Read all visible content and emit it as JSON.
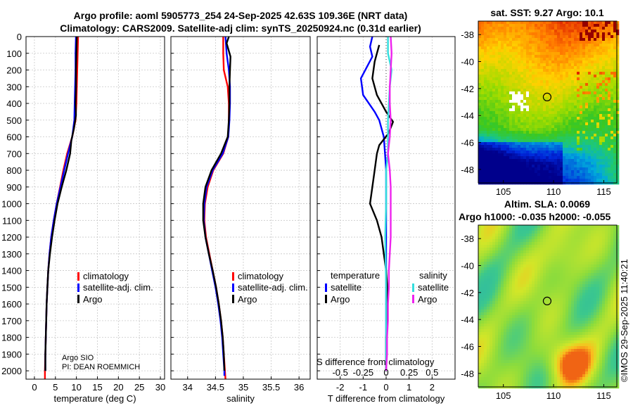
{
  "titles": {
    "line1": "Argo profile: aoml 5905773_254 24-Sep-2025 42.63S 109.36E (NRT data)",
    "line2": "Climatology: CARS2009. Satellite-adj clim: synTS_20250924.nc (0.31d earlier)"
  },
  "colors": {
    "climatology": "#ff0000",
    "satellite_adj": "#0000ff",
    "argo": "#000000",
    "sal_satellite": "#33dddd",
    "sal_argo": "#ee22ee"
  },
  "chart_data": [
    {
      "type": "line",
      "name": "temperature-profile",
      "xlabel": "temperature (deg C)",
      "xlim": [
        -2,
        31
      ],
      "ylim": [
        2050,
        0
      ],
      "xticks": [
        0,
        5,
        10,
        15,
        20,
        25,
        30
      ],
      "yticks": [
        0,
        100,
        200,
        300,
        400,
        500,
        600,
        700,
        800,
        900,
        1000,
        1100,
        1200,
        1300,
        1400,
        1500,
        1600,
        1700,
        1800,
        1900,
        2000
      ],
      "legend": [
        "climatology",
        "satellite-adj. clim.",
        "Argo"
      ],
      "annotations": [
        "Argo SIO",
        "PI: DEAN ROEMMICH"
      ],
      "series": [
        {
          "name": "climatology",
          "color": "#ff0000",
          "points": [
            [
              10.4,
              0
            ],
            [
              10.3,
              100
            ],
            [
              10.2,
              200
            ],
            [
              10.1,
              300
            ],
            [
              10.0,
              400
            ],
            [
              9.8,
              500
            ],
            [
              9.0,
              600
            ],
            [
              7.8,
              700
            ],
            [
              6.9,
              800
            ],
            [
              6.1,
              900
            ],
            [
              5.3,
              1000
            ],
            [
              4.6,
              1100
            ],
            [
              4.0,
              1200
            ],
            [
              3.6,
              1300
            ],
            [
              3.3,
              1400
            ],
            [
              3.1,
              1500
            ],
            [
              2.9,
              1600
            ],
            [
              2.8,
              1700
            ],
            [
              2.7,
              1800
            ],
            [
              2.6,
              1900
            ],
            [
              2.5,
              2000
            ],
            [
              2.5,
              2050
            ]
          ]
        },
        {
          "name": "satellite-adj. clim.",
          "color": "#0000ff",
          "points": [
            [
              9.9,
              0
            ],
            [
              9.8,
              100
            ],
            [
              9.8,
              200
            ],
            [
              9.7,
              300
            ],
            [
              9.6,
              400
            ],
            [
              9.5,
              500
            ],
            [
              9.0,
              600
            ],
            [
              8.0,
              700
            ],
            [
              7.1,
              800
            ],
            [
              6.2,
              900
            ],
            [
              5.3,
              1000
            ],
            [
              4.6,
              1100
            ],
            [
              4.0,
              1200
            ],
            [
              3.6,
              1300
            ],
            [
              3.3,
              1400
            ],
            [
              3.1,
              1500
            ],
            [
              2.9,
              1600
            ],
            [
              2.8,
              1700
            ],
            [
              2.7,
              1800
            ],
            [
              2.6,
              1900
            ],
            [
              2.6,
              2000
            ]
          ]
        },
        {
          "name": "Argo",
          "color": "#000000",
          "points": [
            [
              10.1,
              0
            ],
            [
              10.0,
              100
            ],
            [
              9.9,
              200
            ],
            [
              9.9,
              300
            ],
            [
              9.8,
              400
            ],
            [
              9.9,
              470
            ],
            [
              9.4,
              550
            ],
            [
              8.8,
              620
            ],
            [
              8.5,
              700
            ],
            [
              7.6,
              800
            ],
            [
              6.5,
              900
            ],
            [
              5.5,
              1000
            ],
            [
              4.8,
              1100
            ],
            [
              4.2,
              1200
            ],
            [
              3.7,
              1300
            ],
            [
              3.3,
              1400
            ],
            [
              3.1,
              1500
            ],
            [
              2.9,
              1600
            ],
            [
              2.8,
              1700
            ],
            [
              2.7,
              1800
            ],
            [
              2.6,
              1900
            ],
            [
              2.6,
              2000
            ]
          ]
        }
      ]
    },
    {
      "type": "line",
      "name": "salinity-profile",
      "xlabel": "salinity",
      "xlim": [
        33.7,
        36.2
      ],
      "ylim": [
        2050,
        0
      ],
      "xticks": [
        34,
        34.5,
        35,
        35.5,
        36
      ],
      "legend": [
        "climatology",
        "satellite-adj. clim.",
        "Argo"
      ],
      "series": [
        {
          "name": "climatology",
          "color": "#ff0000",
          "points": [
            [
              34.64,
              0
            ],
            [
              34.64,
              100
            ],
            [
              34.65,
              200
            ],
            [
              34.72,
              300
            ],
            [
              34.74,
              400
            ],
            [
              34.74,
              500
            ],
            [
              34.73,
              600
            ],
            [
              34.64,
              700
            ],
            [
              34.46,
              800
            ],
            [
              34.36,
              900
            ],
            [
              34.31,
              1000
            ],
            [
              34.3,
              1100
            ],
            [
              34.33,
              1200
            ],
            [
              34.39,
              1300
            ],
            [
              34.45,
              1400
            ],
            [
              34.51,
              1500
            ],
            [
              34.56,
              1600
            ],
            [
              34.6,
              1700
            ],
            [
              34.63,
              1800
            ],
            [
              34.65,
              1900
            ],
            [
              34.67,
              2000
            ],
            [
              34.68,
              2050
            ]
          ]
        },
        {
          "name": "satellite-adj. clim.",
          "color": "#0000ff",
          "points": [
            [
              34.68,
              0
            ],
            [
              34.7,
              100
            ],
            [
              34.74,
              200
            ],
            [
              34.76,
              300
            ],
            [
              34.76,
              400
            ],
            [
              34.75,
              500
            ],
            [
              34.73,
              600
            ],
            [
              34.63,
              700
            ],
            [
              34.45,
              800
            ],
            [
              34.34,
              900
            ],
            [
              34.3,
              1000
            ],
            [
              34.29,
              1100
            ],
            [
              34.32,
              1200
            ],
            [
              34.38,
              1300
            ],
            [
              34.44,
              1400
            ],
            [
              34.5,
              1500
            ],
            [
              34.55,
              1600
            ],
            [
              34.59,
              1700
            ],
            [
              34.62,
              1800
            ],
            [
              34.64,
              1900
            ],
            [
              34.66,
              2000
            ],
            [
              34.66,
              2030
            ]
          ]
        },
        {
          "name": "Argo",
          "color": "#000000",
          "points": [
            [
              34.74,
              0
            ],
            [
              34.7,
              40
            ],
            [
              34.77,
              120
            ],
            [
              34.76,
              200
            ],
            [
              34.75,
              300
            ],
            [
              34.75,
              400
            ],
            [
              34.74,
              500
            ],
            [
              34.72,
              600
            ],
            [
              34.6,
              700
            ],
            [
              34.43,
              800
            ],
            [
              34.32,
              900
            ],
            [
              34.28,
              1000
            ],
            [
              34.28,
              1100
            ],
            [
              34.32,
              1200
            ],
            [
              34.38,
              1300
            ],
            [
              34.45,
              1400
            ],
            [
              34.51,
              1500
            ],
            [
              34.56,
              1600
            ],
            [
              34.6,
              1700
            ],
            [
              34.63,
              1800
            ],
            [
              34.65,
              1900
            ],
            [
              34.66,
              2000
            ]
          ]
        }
      ]
    },
    {
      "type": "line",
      "name": "difference-profile",
      "xlabel": "T difference from climatology",
      "xlabel2": "S difference from climatology",
      "xlim": [
        -3,
        3
      ],
      "ylim": [
        2050,
        0
      ],
      "xticks": [
        -2,
        -1,
        0,
        1,
        2
      ],
      "s_ticks": [
        -0.5,
        -0.25,
        0,
        0.25,
        0.5
      ],
      "s_tick_labels": [
        "-0.5",
        "-0.25",
        "0",
        "0.25",
        "0.5"
      ],
      "legend_headers": [
        "temperature",
        "salinity"
      ],
      "legend_temperature": [
        "satellite",
        "Argo"
      ],
      "legend_salinity": [
        "satellite",
        "Argo"
      ],
      "series": [
        {
          "name": "T satellite",
          "color": "#0000ff",
          "points": [
            [
              -0.6,
              0
            ],
            [
              -0.7,
              60
            ],
            [
              -0.6,
              120
            ],
            [
              -1.1,
              250
            ],
            [
              -1.0,
              350
            ],
            [
              -0.5,
              450
            ],
            [
              -0.3,
              500
            ],
            [
              -0.1,
              600
            ],
            [
              -0.05,
              700
            ],
            [
              0,
              800
            ],
            [
              0,
              1000
            ],
            [
              0,
              1500
            ],
            [
              0,
              2000
            ]
          ]
        },
        {
          "name": "T Argo",
          "color": "#000000",
          "points": [
            [
              -0.3,
              50
            ],
            [
              -0.4,
              100
            ],
            [
              -0.5,
              150
            ],
            [
              -0.6,
              250
            ],
            [
              -0.4,
              350
            ],
            [
              0,
              450
            ],
            [
              0.3,
              510
            ],
            [
              0.1,
              580
            ],
            [
              -0.3,
              650
            ],
            [
              -0.4,
              700
            ],
            [
              -0.5,
              800
            ],
            [
              -0.6,
              900
            ],
            [
              -0.7,
              1000
            ],
            [
              -0.4,
              1100
            ],
            [
              -0.2,
              1200
            ],
            [
              -0.1,
              1300
            ],
            [
              0,
              1400
            ],
            [
              0.05,
              1500
            ],
            [
              0.05,
              1600
            ],
            [
              0.03,
              1700
            ],
            [
              0,
              1800
            ],
            [
              0,
              1900
            ],
            [
              0,
              2000
            ]
          ]
        },
        {
          "name": "S satellite",
          "color": "#33dddd",
          "points": [
            [
              0.02,
              0
            ],
            [
              0.02,
              100
            ],
            [
              0.06,
              200
            ],
            [
              0.04,
              300
            ],
            [
              0.03,
              400
            ],
            [
              0.02,
              500
            ],
            [
              0.02,
              700
            ],
            [
              0,
              800
            ],
            [
              0,
              1000
            ],
            [
              -0.01,
              1200
            ],
            [
              0,
              1500
            ],
            [
              0,
              1800
            ],
            [
              0,
              2000
            ]
          ]
        },
        {
          "name": "S Argo",
          "color": "#ee22ee",
          "points": [
            [
              0.05,
              0
            ],
            [
              0.06,
              100
            ],
            [
              0.05,
              200
            ],
            [
              0.04,
              300
            ],
            [
              0.04,
              400
            ],
            [
              0.05,
              500
            ],
            [
              0.04,
              600
            ],
            [
              0.02,
              700
            ],
            [
              0.04,
              800
            ],
            [
              0.05,
              900
            ],
            [
              0.05,
              1000
            ],
            [
              0.05,
              1100
            ],
            [
              0.05,
              1200
            ],
            [
              0.04,
              1300
            ],
            [
              0.03,
              1400
            ],
            [
              0.03,
              1500
            ],
            [
              0.02,
              1600
            ],
            [
              0.02,
              1700
            ],
            [
              0.01,
              1800
            ],
            [
              0.01,
              1900
            ],
            [
              0,
              2000
            ]
          ]
        }
      ]
    },
    {
      "type": "heatmap",
      "name": "sst-map",
      "title": "sat. SST: 9.27 Argo: 10.1",
      "xlim": [
        102.5,
        116.3
      ],
      "ylim": [
        -49,
        -37
      ],
      "xticks": [
        105,
        110,
        115
      ],
      "yticks": [
        -38,
        -40,
        -42,
        -44,
        -46,
        -48
      ],
      "argo_position": [
        109.36,
        -42.63
      ]
    },
    {
      "type": "heatmap",
      "name": "sla-map",
      "title_line1": "Altim. SLA: 0.0069",
      "title_line2": "Argo h1000: -0.035 h2000: -0.055",
      "xlim": [
        102.5,
        116.3
      ],
      "ylim": [
        -49,
        -37
      ],
      "xticks": [
        105,
        110,
        115
      ],
      "yticks": [
        -38,
        -40,
        -42,
        -44,
        -46,
        -48
      ],
      "argo_position": [
        109.36,
        -42.63
      ]
    }
  ],
  "watermark": "©IMOS 29-Sep-2025 11:40:21"
}
